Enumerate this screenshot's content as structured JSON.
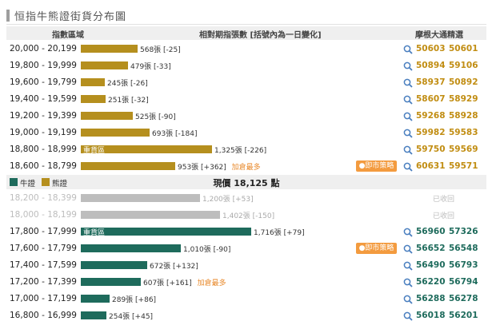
{
  "title": "恒指牛熊證街貨分布圖",
  "header": {
    "col1": "指數區域",
    "col2": "相對期指張數 [括號內為一日變化]",
    "col3": "摩根大通精選"
  },
  "legend": {
    "bull": "牛證",
    "bear": "熊證"
  },
  "current_price": "現價 18,125 點",
  "colors": {
    "bear": "#b58f1e",
    "bull": "#1e6b5c",
    "closed": "#bdbdbd",
    "accent": "#e8892b",
    "bear_code": "#c18d12",
    "bull_code": "#1e6b5c"
  },
  "chart_data": {
    "type": "bar",
    "orientation": "horizontal",
    "unit": "張",
    "bear_rows": [
      {
        "range": "20,000 - 20,199",
        "value": 568,
        "label": "568張 [-25]",
        "codes": [
          "50603",
          "50601"
        ]
      },
      {
        "range": "19,800 - 19,999",
        "value": 479,
        "label": "479張 [-33]",
        "codes": [
          "50894",
          "59106"
        ]
      },
      {
        "range": "19,600 - 19,799",
        "value": 245,
        "label": "245張 [-26]",
        "codes": [
          "58937",
          "50892"
        ]
      },
      {
        "range": "19,400 - 19,599",
        "value": 251,
        "label": "251張 [-32]",
        "codes": [
          "58607",
          "58929"
        ]
      },
      {
        "range": "19,200 - 19,399",
        "value": 525,
        "label": "525張 [-90]",
        "codes": [
          "59268",
          "58928"
        ]
      },
      {
        "range": "19,000 - 19,199",
        "value": 693,
        "label": "693張 [-184]",
        "codes": [
          "59982",
          "59583"
        ]
      },
      {
        "range": "18,800 - 18,999",
        "value": 1325,
        "label": "1,325張 [-226]",
        "heavy": "重貨區",
        "codes": [
          "59750",
          "59569"
        ]
      },
      {
        "range": "18,600 - 18,799",
        "value": 953,
        "label": "953張 [+362]",
        "most": "加倉最多",
        "strategy": "●即市策略",
        "codes": [
          "60631",
          "59571"
        ]
      }
    ],
    "bull_rows": [
      {
        "range": "18,200 - 18,399",
        "value": 1200,
        "label": "1,200張 [+53]",
        "closed": true,
        "closed_text": "已收回"
      },
      {
        "range": "18,000 - 18,199",
        "value": 1402,
        "label": "1,402張 [-150]",
        "closed": true,
        "closed_text": "已收回"
      },
      {
        "range": "17,800 - 17,999",
        "value": 1716,
        "label": "1,716張 [+79]",
        "heavy": "重貨區",
        "codes": [
          "56960",
          "57326"
        ]
      },
      {
        "range": "17,600 - 17,799",
        "value": 1010,
        "label": "1,010張 [-90]",
        "strategy": "●即市策略",
        "codes": [
          "56652",
          "56548"
        ]
      },
      {
        "range": "17,400 - 17,599",
        "value": 672,
        "label": "672張 [+132]",
        "codes": [
          "56490",
          "56793"
        ]
      },
      {
        "range": "17,200 - 17,399",
        "value": 607,
        "label": "607張 [+161]",
        "most": "加倉最多",
        "codes": [
          "56220",
          "56794"
        ]
      },
      {
        "range": "17,000 - 17,199",
        "value": 289,
        "label": "289張 [+86]",
        "codes": [
          "56288",
          "56278"
        ]
      },
      {
        "range": "16,800 - 16,999",
        "value": 254,
        "label": "254張 [+45]",
        "codes": [
          "56018",
          "56201"
        ]
      }
    ]
  }
}
